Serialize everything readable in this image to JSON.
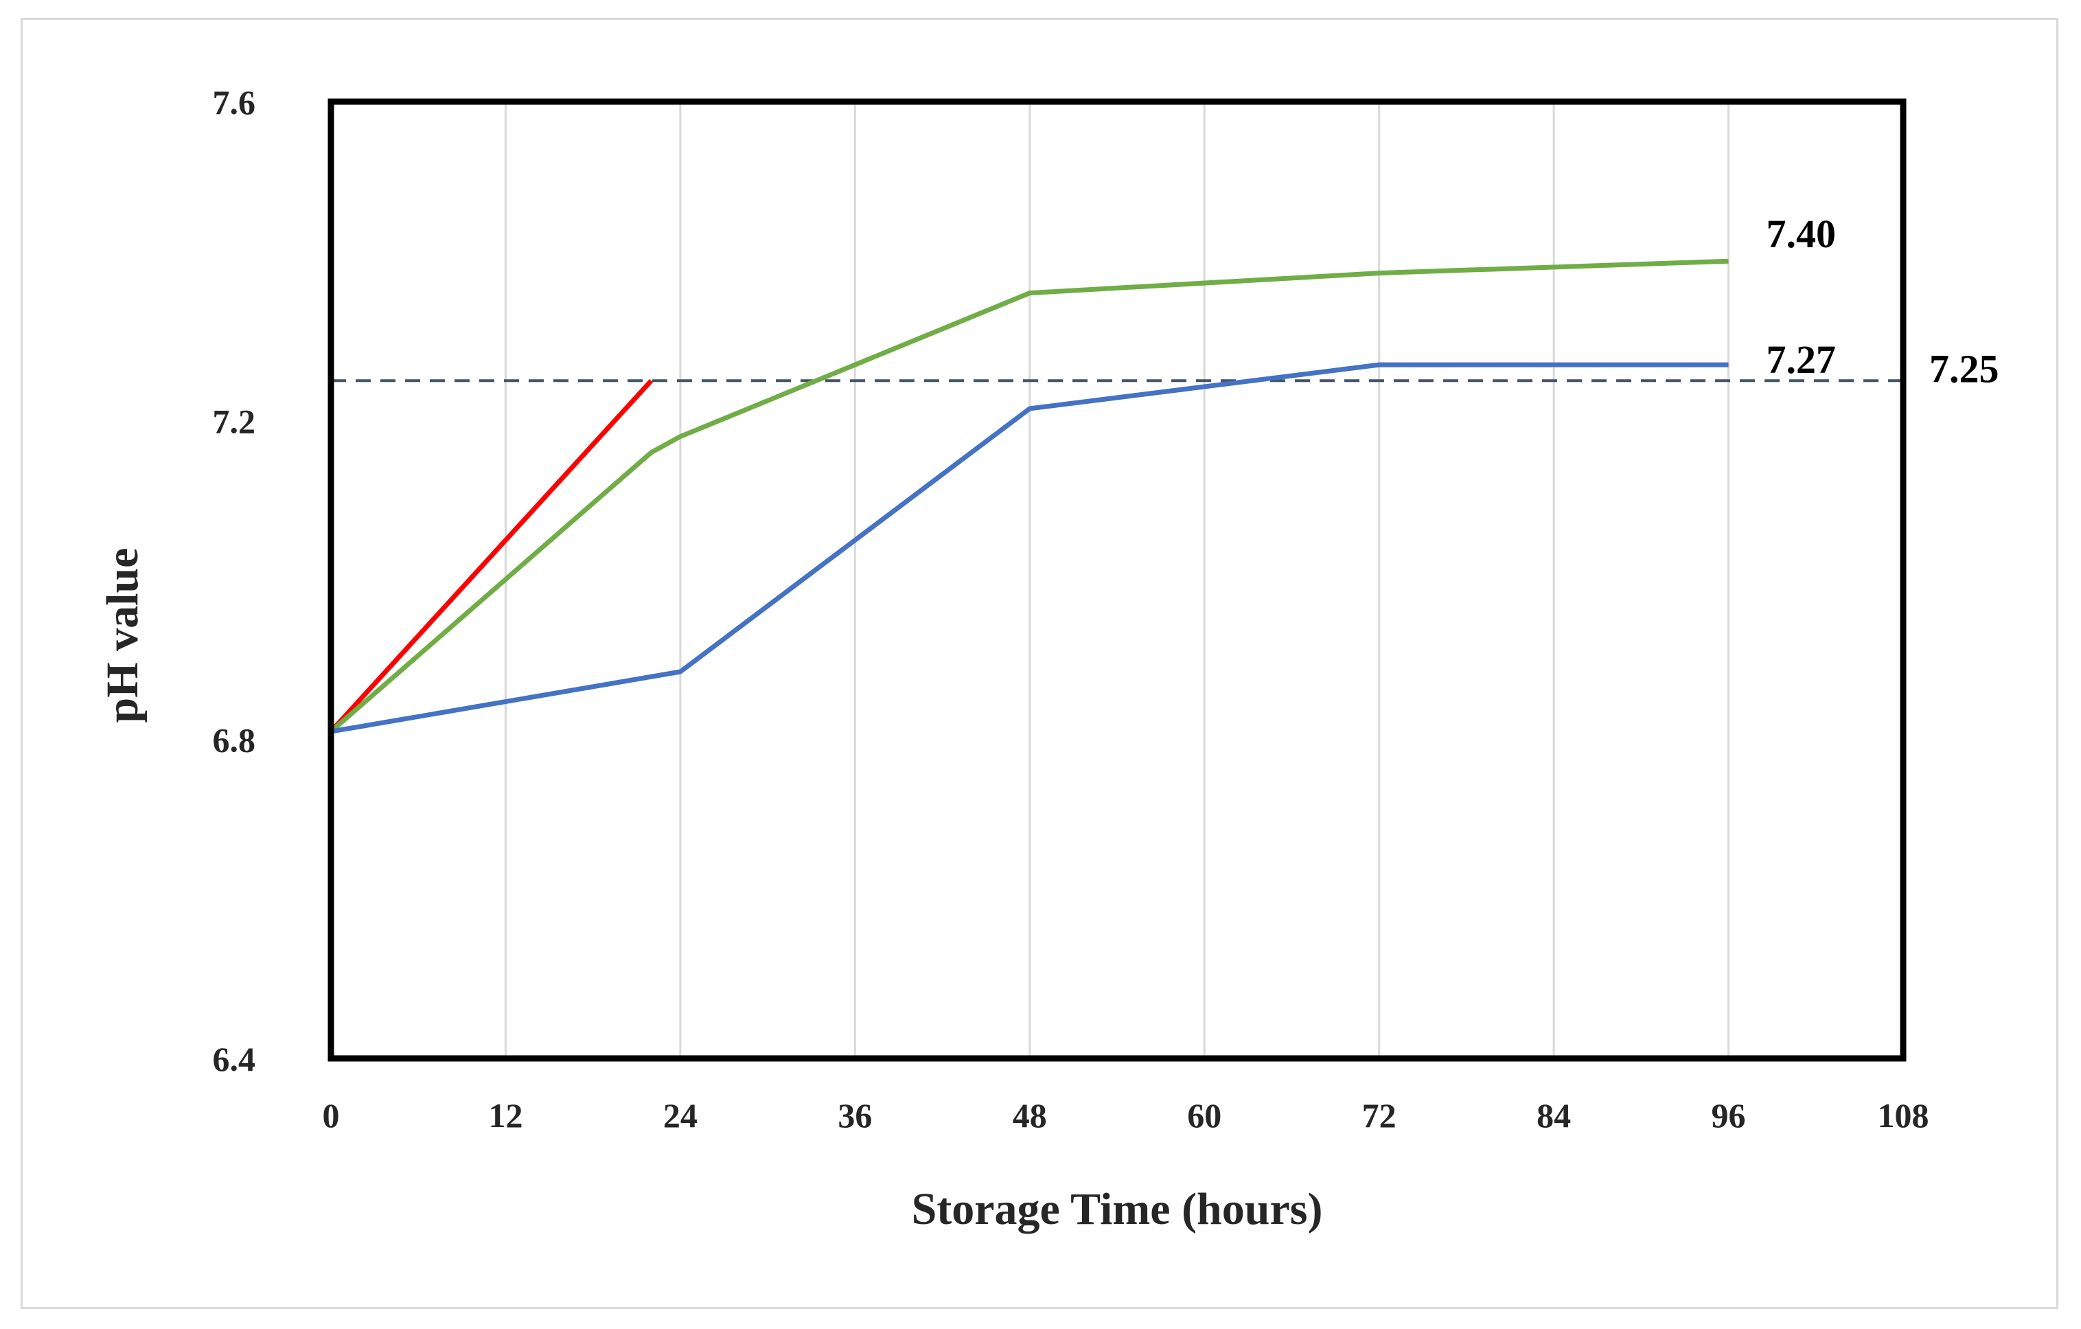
{
  "chart_data": {
    "type": "line",
    "xlabel": "Storage Time (hours)",
    "ylabel": "pH value",
    "xlim": [
      0,
      108
    ],
    "ylim": [
      6.4,
      7.6
    ],
    "x_ticks": [
      "0",
      "12",
      "24",
      "36",
      "48",
      "60",
      "72",
      "84",
      "96",
      "108"
    ],
    "x_tick_values": [
      0,
      12,
      24,
      36,
      48,
      60,
      72,
      84,
      96,
      108
    ],
    "y_ticks": [
      "6.4",
      "6.8",
      "7.2",
      "7.6"
    ],
    "y_tick_values": [
      6.4,
      6.8,
      7.2,
      7.6
    ],
    "grid": "vertical",
    "legend": "none",
    "series": [
      {
        "color": "#ff0000",
        "points": [
          [
            0,
            6.81
          ],
          [
            22,
            7.25
          ]
        ]
      },
      {
        "color": "#70ad47",
        "points": [
          [
            0,
            6.81
          ],
          [
            22,
            7.16
          ],
          [
            24,
            7.18
          ],
          [
            48,
            7.36
          ],
          [
            72,
            7.385
          ],
          [
            96,
            7.4
          ]
        ],
        "end_label": "7.40"
      },
      {
        "color": "#4472c4",
        "points": [
          [
            0,
            6.81
          ],
          [
            24,
            6.885
          ],
          [
            48,
            7.215
          ],
          [
            72,
            7.27
          ],
          [
            96,
            7.27
          ]
        ],
        "end_label": "7.27"
      }
    ],
    "reference_line": {
      "y": 7.25,
      "label": "7.25",
      "color": "#44546a"
    }
  }
}
